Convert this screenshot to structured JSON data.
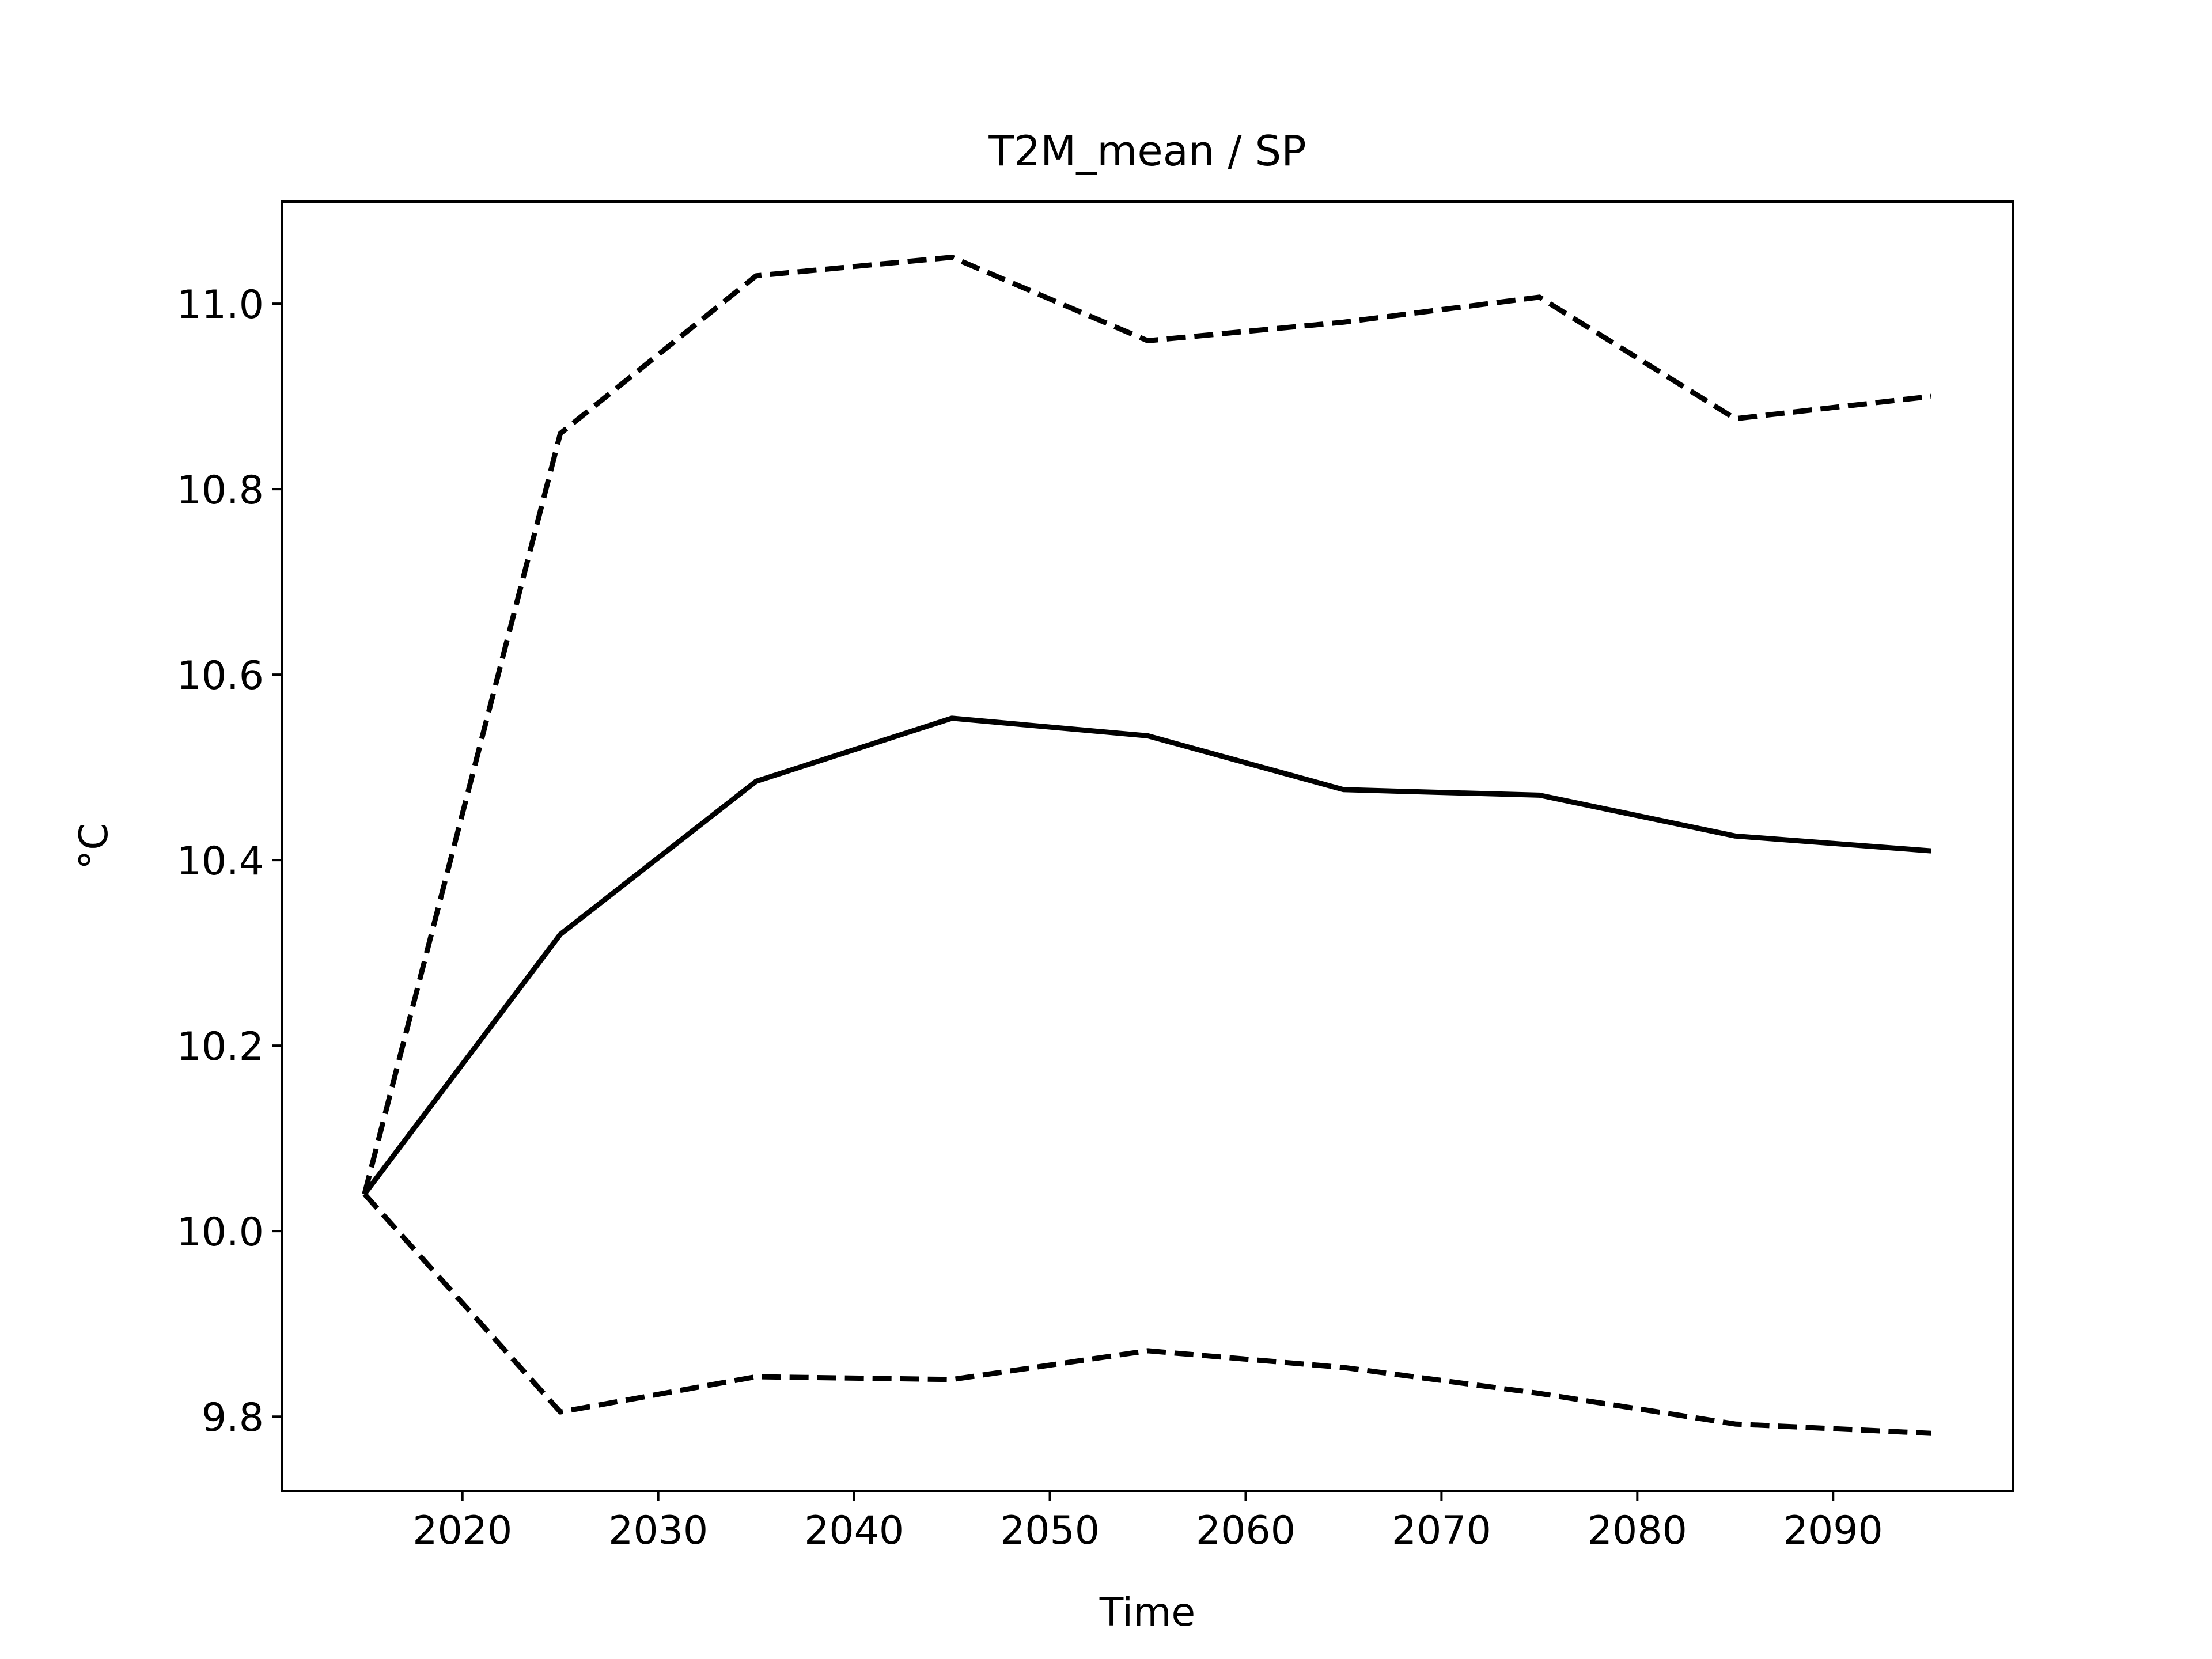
{
  "chart_data": {
    "type": "line",
    "title": "T2M_mean / SP",
    "xlabel": "Time",
    "ylabel": "°C",
    "xlim": [
      2010.8,
      2099.2
    ],
    "ylim": [
      9.72,
      11.11
    ],
    "xticks": [
      2020,
      2030,
      2040,
      2050,
      2060,
      2070,
      2080,
      2090
    ],
    "yticks": [
      9.8,
      10.0,
      10.2,
      10.4,
      10.6,
      10.8,
      11.0
    ],
    "ytick_labels": [
      "9.8",
      "10.0",
      "10.2",
      "10.4",
      "10.6",
      "10.8",
      "11.0"
    ],
    "grid": false,
    "legend": false,
    "x": [
      2015,
      2025,
      2035,
      2045,
      2055,
      2065,
      2075,
      2085,
      2095
    ],
    "series": [
      {
        "style": "solid",
        "color": "#000000",
        "values": [
          10.04,
          10.32,
          10.485,
          10.553,
          10.534,
          10.476,
          10.47,
          10.426,
          10.41
        ]
      },
      {
        "style": "dashed",
        "color": "#000000",
        "values": [
          10.04,
          10.86,
          11.03,
          11.05,
          10.96,
          10.98,
          11.007,
          10.876,
          10.9
        ]
      },
      {
        "style": "dashed",
        "color": "#000000",
        "values": [
          10.04,
          9.805,
          9.843,
          9.84,
          9.871,
          9.853,
          9.825,
          9.792,
          9.782
        ]
      }
    ]
  }
}
